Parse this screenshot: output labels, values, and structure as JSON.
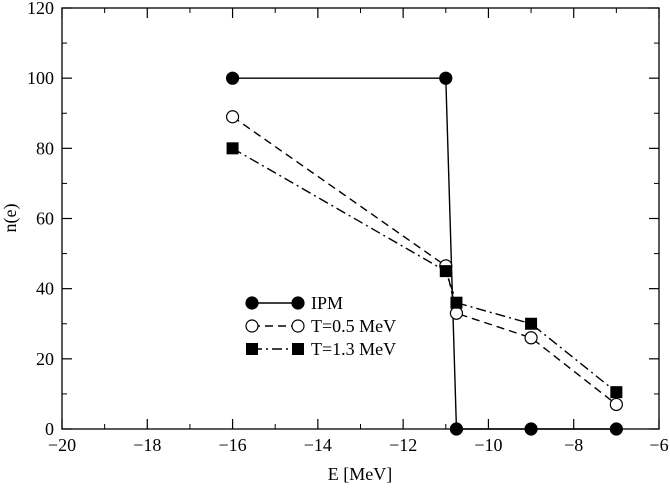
{
  "chart_data": {
    "type": "line",
    "title": "",
    "xlabel": "E [MeV]",
    "ylabel": "n(e)",
    "xlim": [
      -20,
      -6
    ],
    "ylim": [
      0,
      120
    ],
    "x_ticks": [
      -20,
      -18,
      -16,
      -14,
      -12,
      -10,
      -8,
      -6
    ],
    "x_tick_labels": [
      "−20",
      "−18",
      "−16",
      "−14",
      "−12",
      "−10",
      "−8",
      "−6"
    ],
    "y_ticks": [
      0,
      20,
      40,
      60,
      80,
      100,
      120
    ],
    "y_tick_labels": [
      "0",
      "20",
      "40",
      "60",
      "80",
      "100",
      "120"
    ],
    "grid": false,
    "legend_position": "lower-left-center",
    "series": [
      {
        "name": "IPM",
        "marker": "filled-circle",
        "line_style": "solid",
        "color": "#000000",
        "x": [
          -16,
          -11,
          -10.75,
          -9,
          -7
        ],
        "y": [
          100,
          100,
          0,
          0,
          0
        ]
      },
      {
        "name": "T=0.5 MeV",
        "marker": "open-circle",
        "line_style": "dashed",
        "color": "#000000",
        "x": [
          -16,
          -11,
          -10.75,
          -9,
          -7
        ],
        "y": [
          89,
          46.5,
          33,
          26,
          7
        ]
      },
      {
        "name": "T=1.3 MeV",
        "marker": "filled-square",
        "line_style": "dash-dot",
        "color": "#000000",
        "x": [
          -16,
          -11,
          -10.75,
          -9,
          -7
        ],
        "y": [
          80,
          45,
          36,
          30,
          10.5
        ]
      }
    ]
  }
}
